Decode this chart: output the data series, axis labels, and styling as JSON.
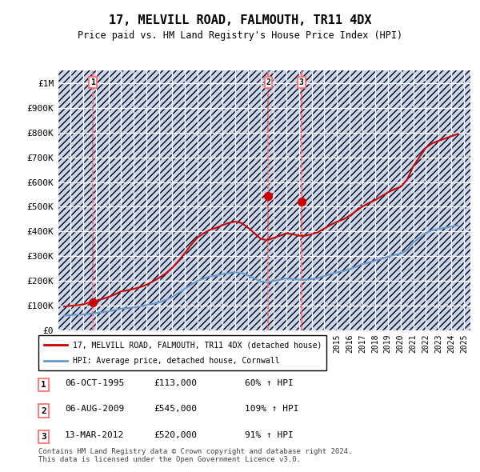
{
  "title": "17, MELVILL ROAD, FALMOUTH, TR11 4DX",
  "subtitle": "Price paid vs. HM Land Registry's House Price Index (HPI)",
  "xlabel": "",
  "ylabel": "",
  "ylim": [
    0,
    1050000
  ],
  "xlim_start": 1993.0,
  "xlim_end": 2025.5,
  "background_color": "#f0f4ff",
  "plot_bg_color": "#e8edf8",
  "grid_color": "#ffffff",
  "hatch_color": "#c8d4f0",
  "red_line_color": "#cc0000",
  "blue_line_color": "#6699cc",
  "sale_marker_color": "#cc0000",
  "dashed_line_color": "#ff6666",
  "sale_points": [
    {
      "year": 1995.76,
      "price": 113000,
      "label": "1"
    },
    {
      "year": 2009.59,
      "price": 545000,
      "label": "2"
    },
    {
      "year": 2012.19,
      "price": 520000,
      "label": "3"
    }
  ],
  "legend_red_label": "17, MELVILL ROAD, FALMOUTH, TR11 4DX (detached house)",
  "legend_blue_label": "HPI: Average price, detached house, Cornwall",
  "table_rows": [
    [
      "1",
      "06-OCT-1995",
      "£113,000",
      "60% ↑ HPI"
    ],
    [
      "2",
      "06-AUG-2009",
      "£545,000",
      "109% ↑ HPI"
    ],
    [
      "3",
      "13-MAR-2012",
      "£520,000",
      "91% ↑ HPI"
    ]
  ],
  "footer": "Contains HM Land Registry data © Crown copyright and database right 2024.\nThis data is licensed under the Open Government Licence v3.0.",
  "yticks": [
    0,
    100000,
    200000,
    300000,
    400000,
    500000,
    600000,
    700000,
    800000,
    900000,
    1000000
  ],
  "ytick_labels": [
    "£0",
    "£100K",
    "£200K",
    "£300K",
    "£400K",
    "£500K",
    "£600K",
    "£700K",
    "£800K",
    "£900K",
    "£1M"
  ],
  "hpi_years": [
    1993.5,
    1994,
    1994.5,
    1995,
    1995.5,
    1996,
    1996.5,
    1997,
    1997.5,
    1998,
    1998.5,
    1999,
    1999.5,
    2000,
    2000.5,
    2001,
    2001.5,
    2002,
    2002.5,
    2003,
    2003.5,
    2004,
    2004.5,
    2005,
    2005.5,
    2006,
    2006.5,
    2007,
    2007.5,
    2008,
    2008.5,
    2009,
    2009.5,
    2010,
    2010.5,
    2011,
    2011.5,
    2012,
    2012.5,
    2013,
    2013.5,
    2014,
    2014.5,
    2015,
    2015.5,
    2016,
    2016.5,
    2017,
    2017.5,
    2018,
    2018.5,
    2019,
    2019.5,
    2020,
    2020.5,
    2021,
    2021.5,
    2022,
    2022.5,
    2023,
    2023.5,
    2024,
    2024.5
  ],
  "hpi_values": [
    60000,
    62000,
    63000,
    65000,
    67000,
    70000,
    73000,
    77000,
    82000,
    88000,
    90000,
    93000,
    97000,
    102000,
    108000,
    114000,
    123000,
    135000,
    150000,
    168000,
    185000,
    200000,
    210000,
    218000,
    222000,
    228000,
    232000,
    235000,
    232000,
    222000,
    210000,
    198000,
    195000,
    200000,
    205000,
    210000,
    208000,
    205000,
    205000,
    208000,
    212000,
    220000,
    228000,
    235000,
    240000,
    248000,
    258000,
    268000,
    275000,
    282000,
    290000,
    298000,
    305000,
    310000,
    325000,
    355000,
    375000,
    395000,
    405000,
    410000,
    415000,
    420000,
    425000
  ],
  "red_years": [
    1993.5,
    1994,
    1994.5,
    1995,
    1995.5,
    1996,
    1996.5,
    1997,
    1997.5,
    1998,
    1998.5,
    1999,
    1999.5,
    2000,
    2000.5,
    2001,
    2001.5,
    2002,
    2002.5,
    2003,
    2003.5,
    2004,
    2004.5,
    2005,
    2005.5,
    2006,
    2006.5,
    2007,
    2007.5,
    2008,
    2008.5,
    2009,
    2009.5,
    2010,
    2010.5,
    2011,
    2011.5,
    2012,
    2012.5,
    2013,
    2013.5,
    2014,
    2014.5,
    2015,
    2015.5,
    2016,
    2016.5,
    2017,
    2017.5,
    2018,
    2018.5,
    2019,
    2019.5,
    2020,
    2020.5,
    2021,
    2021.5,
    2022,
    2022.5,
    2023,
    2023.5,
    2024,
    2024.5
  ],
  "red_values": [
    96154,
    99231,
    101538,
    104615,
    113000,
    120000,
    127000,
    135000,
    145000,
    158000,
    162000,
    168000,
    175000,
    185000,
    198000,
    213000,
    230000,
    252000,
    280000,
    312000,
    345000,
    375000,
    393000,
    407000,
    415000,
    426000,
    435000,
    440000,
    434000,
    415000,
    393000,
    370000,
    365000,
    374000,
    383000,
    393000,
    389000,
    383000,
    383000,
    389000,
    397000,
    412000,
    427000,
    440000,
    449000,
    464000,
    483000,
    501000,
    515000,
    527000,
    543000,
    558000,
    571000,
    580000,
    608000,
    664000,
    702000,
    739000,
    757000,
    767000,
    776000,
    785000,
    795000
  ]
}
